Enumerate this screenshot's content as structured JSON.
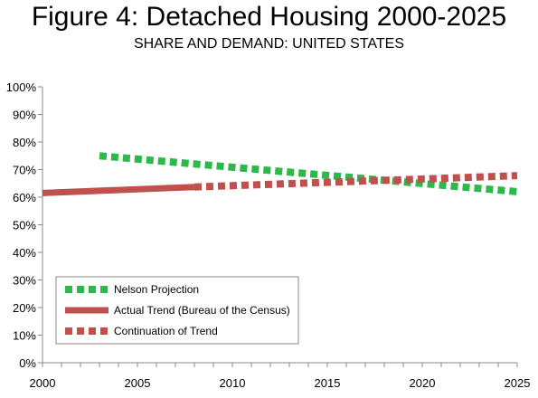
{
  "chart_data": {
    "type": "line",
    "title": "Figure 4: Detached Housing 2000-2025",
    "subtitle": "SHARE AND DEMAND: UNITED STATES",
    "xlabel": "",
    "ylabel": "",
    "xlim": [
      2000,
      2025
    ],
    "ylim": [
      0,
      100
    ],
    "x_ticks": [
      2000,
      2005,
      2010,
      2015,
      2020,
      2025
    ],
    "x_tick_labels": [
      "2000",
      "2005",
      "2010",
      "2015",
      "2020",
      "2025"
    ],
    "y_ticks": [
      0,
      10,
      20,
      30,
      40,
      50,
      60,
      70,
      80,
      90,
      100
    ],
    "y_tick_labels": [
      "0%",
      "10%",
      "20%",
      "30%",
      "40%",
      "50%",
      "60%",
      "70%",
      "80%",
      "90%",
      "100%"
    ],
    "grid": false,
    "legend_position": "bottom-left",
    "series": [
      {
        "name": "Nelson Projection",
        "color": "#2db84a",
        "style": "dotted",
        "x": [
          2003,
          2025
        ],
        "y": [
          75,
          62
        ]
      },
      {
        "name": "Actual Trend (Bureau of the Census)",
        "color": "#c0504d",
        "style": "solid",
        "x": [
          2000,
          2008
        ],
        "y": [
          61.5,
          63.7
        ]
      },
      {
        "name": "Continuation of Trend",
        "color": "#c0504d",
        "style": "dotted",
        "x": [
          2008,
          2025
        ],
        "y": [
          63.7,
          67.8
        ]
      }
    ]
  }
}
